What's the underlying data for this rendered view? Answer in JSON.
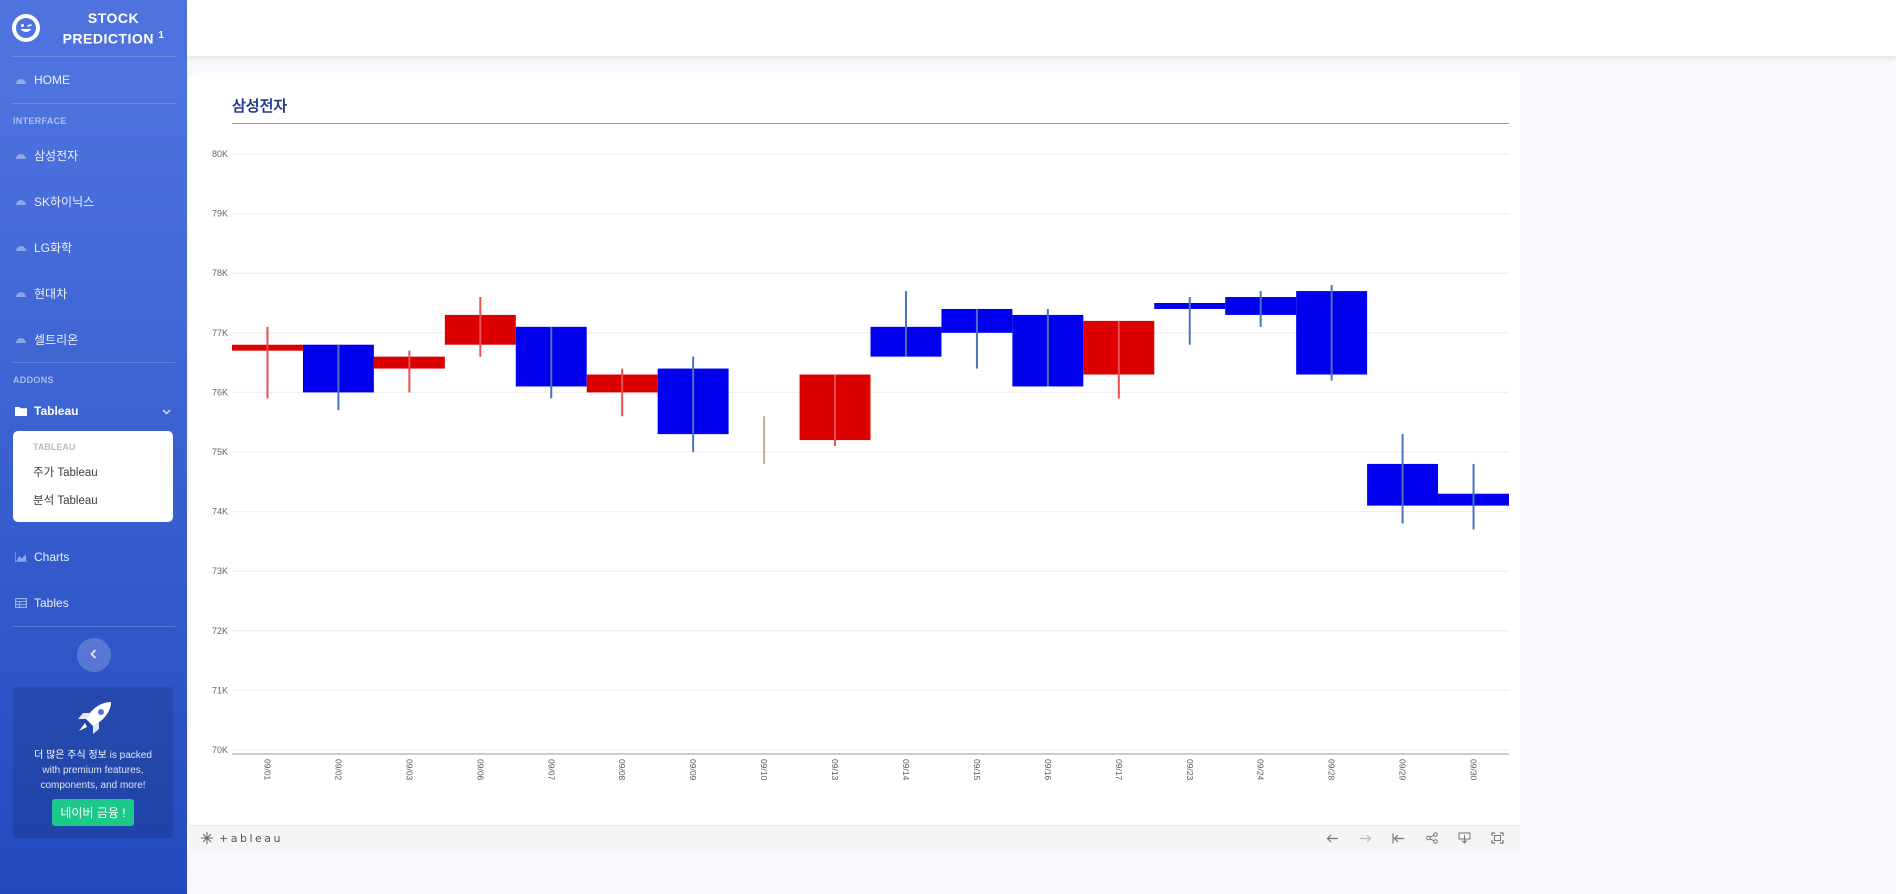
{
  "sidebar": {
    "brand_line1": "STOCK",
    "brand_line2": "PREDICTION",
    "brand_sup": "1",
    "home": "HOME",
    "heading_interface": "INTERFACE",
    "stocks": [
      "삼성전자",
      "SK하이닉스",
      "LG화학",
      "현대차",
      "셀트리온"
    ],
    "heading_addons": "ADDONS",
    "tableau_label": "Tableau",
    "collapse_header": "TABLEAU",
    "collapse_items": [
      "주가 Tableau",
      "분석 Tableau"
    ],
    "charts": "Charts",
    "tables": "Tables",
    "promo_bold": "더 많은 주식 정보",
    "promo_rest": " is packed with premium features, components, and more!",
    "promo_button": "네이버 금융 !",
    "colors": {
      "gradient_top": "#4e73df",
      "gradient_bottom": "#224abe",
      "promo_button": "#1cc88a"
    }
  },
  "viz": {
    "title": "삼성전자",
    "toolbar_logo": "+ableau",
    "toolbar_icons": [
      "undo-icon",
      "redo-icon",
      "revert-icon",
      "share-icon",
      "download-icon",
      "fullscreen-icon"
    ]
  },
  "chart_data": {
    "type": "candlestick",
    "title": "삼성전자",
    "xlabel": "",
    "ylabel": "",
    "ylim": [
      70000,
      80000
    ],
    "y_ticks": [
      70000,
      71000,
      72000,
      73000,
      74000,
      75000,
      76000,
      77000,
      78000,
      79000,
      80000
    ],
    "y_tick_labels": [
      "70K",
      "71K",
      "72K",
      "73K",
      "74K",
      "75K",
      "76K",
      "77K",
      "78K",
      "79K",
      "80K"
    ],
    "up_color": "#dd0000",
    "down_color": "#0000ee",
    "categories": [
      "09/01",
      "09/02",
      "09/03",
      "09/06",
      "09/07",
      "09/08",
      "09/09",
      "09/10",
      "09/13",
      "09/14",
      "09/15",
      "09/16",
      "09/17",
      "09/23",
      "09/24",
      "09/28",
      "09/29",
      "09/30"
    ],
    "ohlc": [
      {
        "date": "09/01",
        "open": 76700,
        "close": 76800,
        "high": 77100,
        "low": 75900
      },
      {
        "date": "09/02",
        "open": 76800,
        "close": 76000,
        "high": 76800,
        "low": 75700
      },
      {
        "date": "09/03",
        "open": 76400,
        "close": 76600,
        "high": 76700,
        "low": 76000
      },
      {
        "date": "09/06",
        "open": 76800,
        "close": 77300,
        "high": 77600,
        "low": 76600
      },
      {
        "date": "09/07",
        "open": 77100,
        "close": 76100,
        "high": 77100,
        "low": 75900
      },
      {
        "date": "09/08",
        "open": 76000,
        "close": 76300,
        "high": 76400,
        "low": 75600
      },
      {
        "date": "09/09",
        "open": 76400,
        "close": 75300,
        "high": 76600,
        "low": 75000
      },
      {
        "date": "09/10",
        "open": 75300,
        "close": 75300,
        "high": 75600,
        "low": 74800
      },
      {
        "date": "09/13",
        "open": 75200,
        "close": 76300,
        "high": 76300,
        "low": 75100
      },
      {
        "date": "09/14",
        "open": 77100,
        "close": 76600,
        "high": 77700,
        "low": 76600
      },
      {
        "date": "09/15",
        "open": 77400,
        "close": 77000,
        "high": 77400,
        "low": 76400
      },
      {
        "date": "09/16",
        "open": 77300,
        "close": 76100,
        "high": 77400,
        "low": 76100
      },
      {
        "date": "09/17",
        "open": 76300,
        "close": 77200,
        "high": 77200,
        "low": 75900
      },
      {
        "date": "09/23",
        "open": 77500,
        "close": 77400,
        "high": 77600,
        "low": 76800
      },
      {
        "date": "09/24",
        "open": 77600,
        "close": 77300,
        "high": 77700,
        "low": 77100
      },
      {
        "date": "09/28",
        "open": 77700,
        "close": 76300,
        "high": 77800,
        "low": 76200
      },
      {
        "date": "09/29",
        "open": 74800,
        "close": 74100,
        "high": 75300,
        "low": 73800
      },
      {
        "date": "09/30",
        "open": 74300,
        "close": 74100,
        "high": 74800,
        "low": 73700
      }
    ]
  }
}
